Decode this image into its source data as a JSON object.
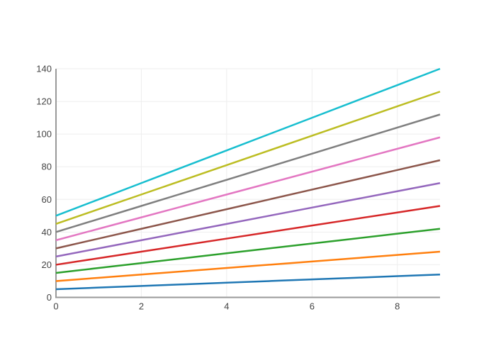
{
  "chart_data": {
    "type": "line",
    "title": "",
    "xlabel": "",
    "ylabel": "",
    "x": [
      0,
      1,
      2,
      3,
      4,
      5,
      6,
      7,
      8,
      9
    ],
    "series": [
      {
        "color": "#1f77b4",
        "values": [
          5,
          6,
          7,
          8,
          9,
          10,
          11,
          12,
          13,
          14
        ]
      },
      {
        "color": "#ff7f0e",
        "values": [
          10,
          12,
          14,
          16,
          18,
          20,
          22,
          24,
          26,
          28
        ]
      },
      {
        "color": "#2ca02c",
        "values": [
          15,
          18,
          21,
          24,
          27,
          30,
          33,
          36,
          39,
          42
        ]
      },
      {
        "color": "#d62728",
        "values": [
          20,
          24,
          28,
          32,
          36,
          40,
          44,
          48,
          52,
          56
        ]
      },
      {
        "color": "#9467bd",
        "values": [
          25,
          30,
          35,
          40,
          45,
          50,
          55,
          60,
          65,
          70
        ]
      },
      {
        "color": "#8c564b",
        "values": [
          30,
          36,
          42,
          48,
          54,
          60,
          66,
          72,
          78,
          84
        ]
      },
      {
        "color": "#e377c2",
        "values": [
          35,
          42,
          49,
          56,
          63,
          70,
          77,
          84,
          91,
          98
        ]
      },
      {
        "color": "#7f7f7f",
        "values": [
          40,
          48,
          56,
          64,
          72,
          80,
          88,
          96,
          104,
          112
        ]
      },
      {
        "color": "#bcbd22",
        "values": [
          45,
          54,
          63,
          72,
          81,
          90,
          99,
          108,
          117,
          126
        ]
      },
      {
        "color": "#17becf",
        "values": [
          50,
          60,
          70,
          80,
          90,
          100,
          110,
          120,
          130,
          140
        ]
      }
    ],
    "xlim": [
      0,
      9
    ],
    "ylim": [
      0,
      140
    ],
    "x_ticks": [
      0,
      2,
      4,
      6,
      8
    ],
    "y_ticks": [
      0,
      20,
      40,
      60,
      80,
      100,
      120,
      140
    ],
    "grid": true,
    "legend": false,
    "style": {
      "background": "#ffffff",
      "grid_color": "#eeeeee",
      "axis_line_color": "#999999",
      "tick_label_color": "#444444",
      "line_width": 2.5
    }
  }
}
